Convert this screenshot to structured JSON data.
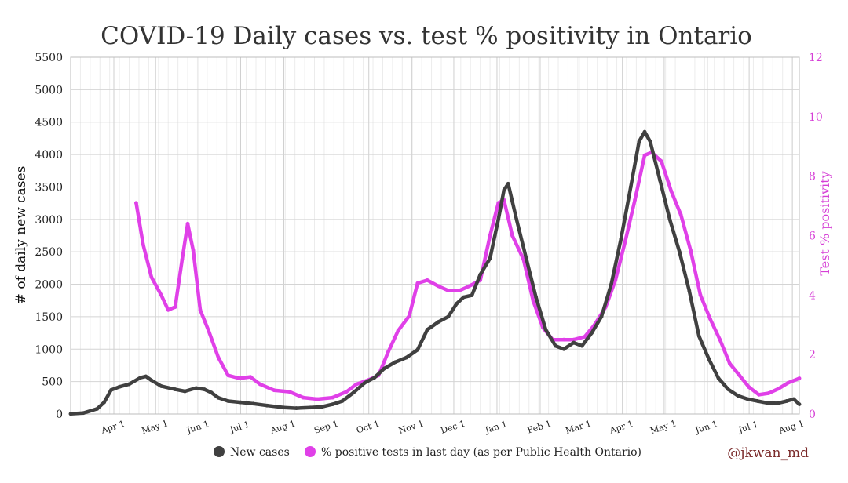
{
  "chart_data": {
    "type": "line",
    "title": "COVID-19 Daily cases vs. test % positivity in Ontario",
    "ylabel_left": "# of daily new cases",
    "ylabel_right": "Test % positivity",
    "ylim_left": [
      0,
      5500
    ],
    "ylim_right": [
      0,
      12
    ],
    "yticks_left": [
      "0",
      "500",
      "1000",
      "1500",
      "2000",
      "2500",
      "3000",
      "3500",
      "4000",
      "4500",
      "5000",
      "5500"
    ],
    "yticks_right": [
      "0",
      "2",
      "4",
      "6",
      "8",
      "10",
      "12"
    ],
    "x_range": [
      "2020-03-01",
      "2021-08-06"
    ],
    "xticks": [
      {
        "date": "2020-04-01",
        "label": "Apr 1"
      },
      {
        "date": "2020-05-01",
        "label": "May 1"
      },
      {
        "date": "2020-06-01",
        "label": "Jun 1"
      },
      {
        "date": "2020-07-01",
        "label": "Jul 1"
      },
      {
        "date": "2020-08-01",
        "label": "Aug 1"
      },
      {
        "date": "2020-09-01",
        "label": "Sep 1"
      },
      {
        "date": "2020-10-01",
        "label": "Oct 1"
      },
      {
        "date": "2020-11-01",
        "label": "Nov 1"
      },
      {
        "date": "2020-12-01",
        "label": "Dec 1"
      },
      {
        "date": "2021-01-01",
        "label": "Jan 1"
      },
      {
        "date": "2021-02-01",
        "label": "Feb 1"
      },
      {
        "date": "2021-03-01",
        "label": "Mar 1"
      },
      {
        "date": "2021-04-01",
        "label": "Apr 1"
      },
      {
        "date": "2021-05-01",
        "label": "May 1"
      },
      {
        "date": "2021-06-01",
        "label": "Jun 1"
      },
      {
        "date": "2021-07-01",
        "label": "Jul 1"
      },
      {
        "date": "2021-08-01",
        "label": "Aug 1"
      }
    ],
    "grid": true,
    "legend_position": "bottom",
    "series": [
      {
        "name": "New cases",
        "axis": "left",
        "color": "#404040",
        "points": [
          [
            "2020-03-01",
            2
          ],
          [
            "2020-03-10",
            15
          ],
          [
            "2020-03-20",
            80
          ],
          [
            "2020-03-25",
            180
          ],
          [
            "2020-03-30",
            370
          ],
          [
            "2020-04-05",
            420
          ],
          [
            "2020-04-12",
            460
          ],
          [
            "2020-04-20",
            560
          ],
          [
            "2020-04-24",
            580
          ],
          [
            "2020-04-28",
            520
          ],
          [
            "2020-05-05",
            430
          ],
          [
            "2020-05-15",
            380
          ],
          [
            "2020-05-22",
            350
          ],
          [
            "2020-05-30",
            400
          ],
          [
            "2020-06-05",
            380
          ],
          [
            "2020-06-10",
            330
          ],
          [
            "2020-06-15",
            250
          ],
          [
            "2020-06-22",
            200
          ],
          [
            "2020-07-01",
            180
          ],
          [
            "2020-07-10",
            160
          ],
          [
            "2020-07-20",
            130
          ],
          [
            "2020-08-01",
            100
          ],
          [
            "2020-08-10",
            90
          ],
          [
            "2020-08-20",
            100
          ],
          [
            "2020-08-28",
            110
          ],
          [
            "2020-09-05",
            150
          ],
          [
            "2020-09-12",
            200
          ],
          [
            "2020-09-20",
            330
          ],
          [
            "2020-09-28",
            480
          ],
          [
            "2020-10-05",
            560
          ],
          [
            "2020-10-12",
            700
          ],
          [
            "2020-10-20",
            800
          ],
          [
            "2020-10-28",
            870
          ],
          [
            "2020-11-05",
            990
          ],
          [
            "2020-11-12",
            1300
          ],
          [
            "2020-11-20",
            1420
          ],
          [
            "2020-11-27",
            1500
          ],
          [
            "2020-12-03",
            1700
          ],
          [
            "2020-12-08",
            1800
          ],
          [
            "2020-12-14",
            1830
          ],
          [
            "2020-12-20",
            2150
          ],
          [
            "2020-12-27",
            2400
          ],
          [
            "2021-01-02",
            3000
          ],
          [
            "2021-01-06",
            3450
          ],
          [
            "2021-01-09",
            3550
          ],
          [
            "2021-01-15",
            3000
          ],
          [
            "2021-01-22",
            2400
          ],
          [
            "2021-01-29",
            1800
          ],
          [
            "2021-02-05",
            1300
          ],
          [
            "2021-02-12",
            1050
          ],
          [
            "2021-02-18",
            1000
          ],
          [
            "2021-02-25",
            1100
          ],
          [
            "2021-03-03",
            1050
          ],
          [
            "2021-03-10",
            1250
          ],
          [
            "2021-03-17",
            1500
          ],
          [
            "2021-03-24",
            2000
          ],
          [
            "2021-03-31",
            2700
          ],
          [
            "2021-04-07",
            3500
          ],
          [
            "2021-04-13",
            4200
          ],
          [
            "2021-04-17",
            4350
          ],
          [
            "2021-04-21",
            4200
          ],
          [
            "2021-04-28",
            3600
          ],
          [
            "2021-05-05",
            3000
          ],
          [
            "2021-05-12",
            2500
          ],
          [
            "2021-05-19",
            1900
          ],
          [
            "2021-05-26",
            1200
          ],
          [
            "2021-06-02",
            850
          ],
          [
            "2021-06-09",
            550
          ],
          [
            "2021-06-16",
            380
          ],
          [
            "2021-06-23",
            280
          ],
          [
            "2021-06-30",
            230
          ],
          [
            "2021-07-07",
            200
          ],
          [
            "2021-07-14",
            170
          ],
          [
            "2021-07-21",
            165
          ],
          [
            "2021-07-28",
            200
          ],
          [
            "2021-08-02",
            230
          ],
          [
            "2021-08-06",
            150
          ]
        ]
      },
      {
        "name": "% positive tests in last day (as per Public Health Ontario)",
        "axis": "right",
        "color": "#e040e8",
        "points": [
          [
            "2020-04-17",
            7.1
          ],
          [
            "2020-04-22",
            5.7
          ],
          [
            "2020-04-28",
            4.6
          ],
          [
            "2020-05-05",
            4.0
          ],
          [
            "2020-05-10",
            3.5
          ],
          [
            "2020-05-15",
            3.6
          ],
          [
            "2020-05-20",
            5.2
          ],
          [
            "2020-05-24",
            6.4
          ],
          [
            "2020-05-28",
            5.5
          ],
          [
            "2020-06-02",
            3.5
          ],
          [
            "2020-06-08",
            2.8
          ],
          [
            "2020-06-15",
            1.9
          ],
          [
            "2020-06-22",
            1.3
          ],
          [
            "2020-06-30",
            1.2
          ],
          [
            "2020-07-08",
            1.25
          ],
          [
            "2020-07-15",
            1.0
          ],
          [
            "2020-07-25",
            0.8
          ],
          [
            "2020-08-05",
            0.75
          ],
          [
            "2020-08-15",
            0.55
          ],
          [
            "2020-08-25",
            0.5
          ],
          [
            "2020-09-05",
            0.55
          ],
          [
            "2020-09-15",
            0.75
          ],
          [
            "2020-09-22",
            1.0
          ],
          [
            "2020-10-01",
            1.15
          ],
          [
            "2020-10-08",
            1.3
          ],
          [
            "2020-10-15",
            2.1
          ],
          [
            "2020-10-22",
            2.8
          ],
          [
            "2020-10-30",
            3.3
          ],
          [
            "2020-11-05",
            4.4
          ],
          [
            "2020-11-12",
            4.5
          ],
          [
            "2020-11-20",
            4.3
          ],
          [
            "2020-11-27",
            4.15
          ],
          [
            "2020-12-05",
            4.15
          ],
          [
            "2020-12-12",
            4.3
          ],
          [
            "2020-12-20",
            4.5
          ],
          [
            "2020-12-27",
            6.0
          ],
          [
            "2021-01-02",
            7.1
          ],
          [
            "2021-01-06",
            7.2
          ],
          [
            "2021-01-12",
            6.0
          ],
          [
            "2021-01-20",
            5.2
          ],
          [
            "2021-01-27",
            3.8
          ],
          [
            "2021-02-03",
            2.9
          ],
          [
            "2021-02-10",
            2.5
          ],
          [
            "2021-02-18",
            2.5
          ],
          [
            "2021-02-25",
            2.5
          ],
          [
            "2021-03-05",
            2.6
          ],
          [
            "2021-03-12",
            3.0
          ],
          [
            "2021-03-20",
            3.6
          ],
          [
            "2021-03-27",
            4.5
          ],
          [
            "2021-04-03",
            5.8
          ],
          [
            "2021-04-10",
            7.2
          ],
          [
            "2021-04-17",
            8.7
          ],
          [
            "2021-04-22",
            8.8
          ],
          [
            "2021-04-29",
            8.5
          ],
          [
            "2021-05-06",
            7.5
          ],
          [
            "2021-05-13",
            6.7
          ],
          [
            "2021-05-20",
            5.5
          ],
          [
            "2021-05-27",
            4.0
          ],
          [
            "2021-06-03",
            3.2
          ],
          [
            "2021-06-10",
            2.5
          ],
          [
            "2021-06-17",
            1.7
          ],
          [
            "2021-06-24",
            1.3
          ],
          [
            "2021-07-01",
            0.9
          ],
          [
            "2021-07-08",
            0.65
          ],
          [
            "2021-07-15",
            0.7
          ],
          [
            "2021-07-22",
            0.85
          ],
          [
            "2021-07-29",
            1.05
          ],
          [
            "2021-08-06",
            1.2
          ]
        ]
      }
    ]
  },
  "legend": {
    "cases_label": "New cases",
    "positivity_label": "% positive tests in last day (as per Public Health Ontario)",
    "cases_color": "#404040",
    "positivity_color": "#e040e8"
  },
  "credit": "@jkwan_md"
}
